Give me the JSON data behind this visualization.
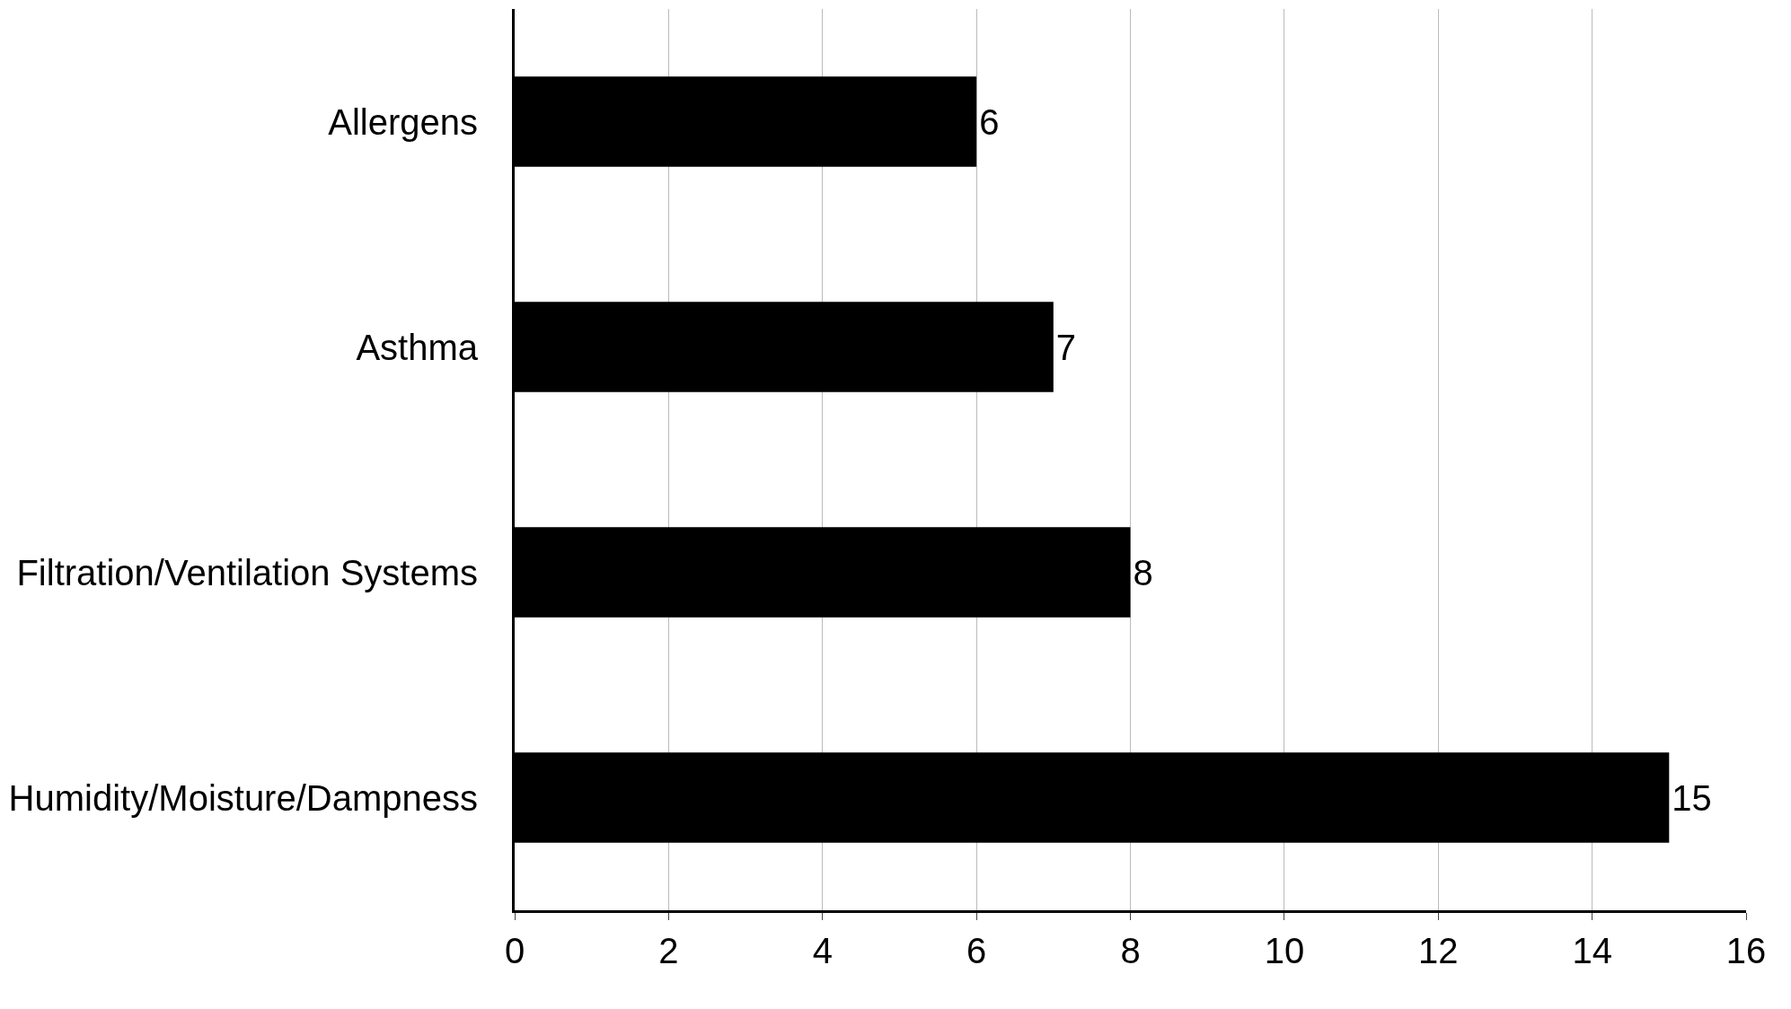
{
  "chart_data": {
    "type": "bar",
    "orientation": "horizontal",
    "categories": [
      "Allergens",
      "Asthma",
      "Filtration/Ventilation Systems",
      "Humidity/Moisture/Dampness"
    ],
    "values": [
      6,
      7,
      8,
      15
    ],
    "color": "#000000",
    "xlim": [
      0,
      16
    ],
    "xticks": [
      0,
      2,
      4,
      6,
      8,
      10,
      12,
      14,
      16
    ],
    "grid": "x",
    "data_labels": true
  }
}
